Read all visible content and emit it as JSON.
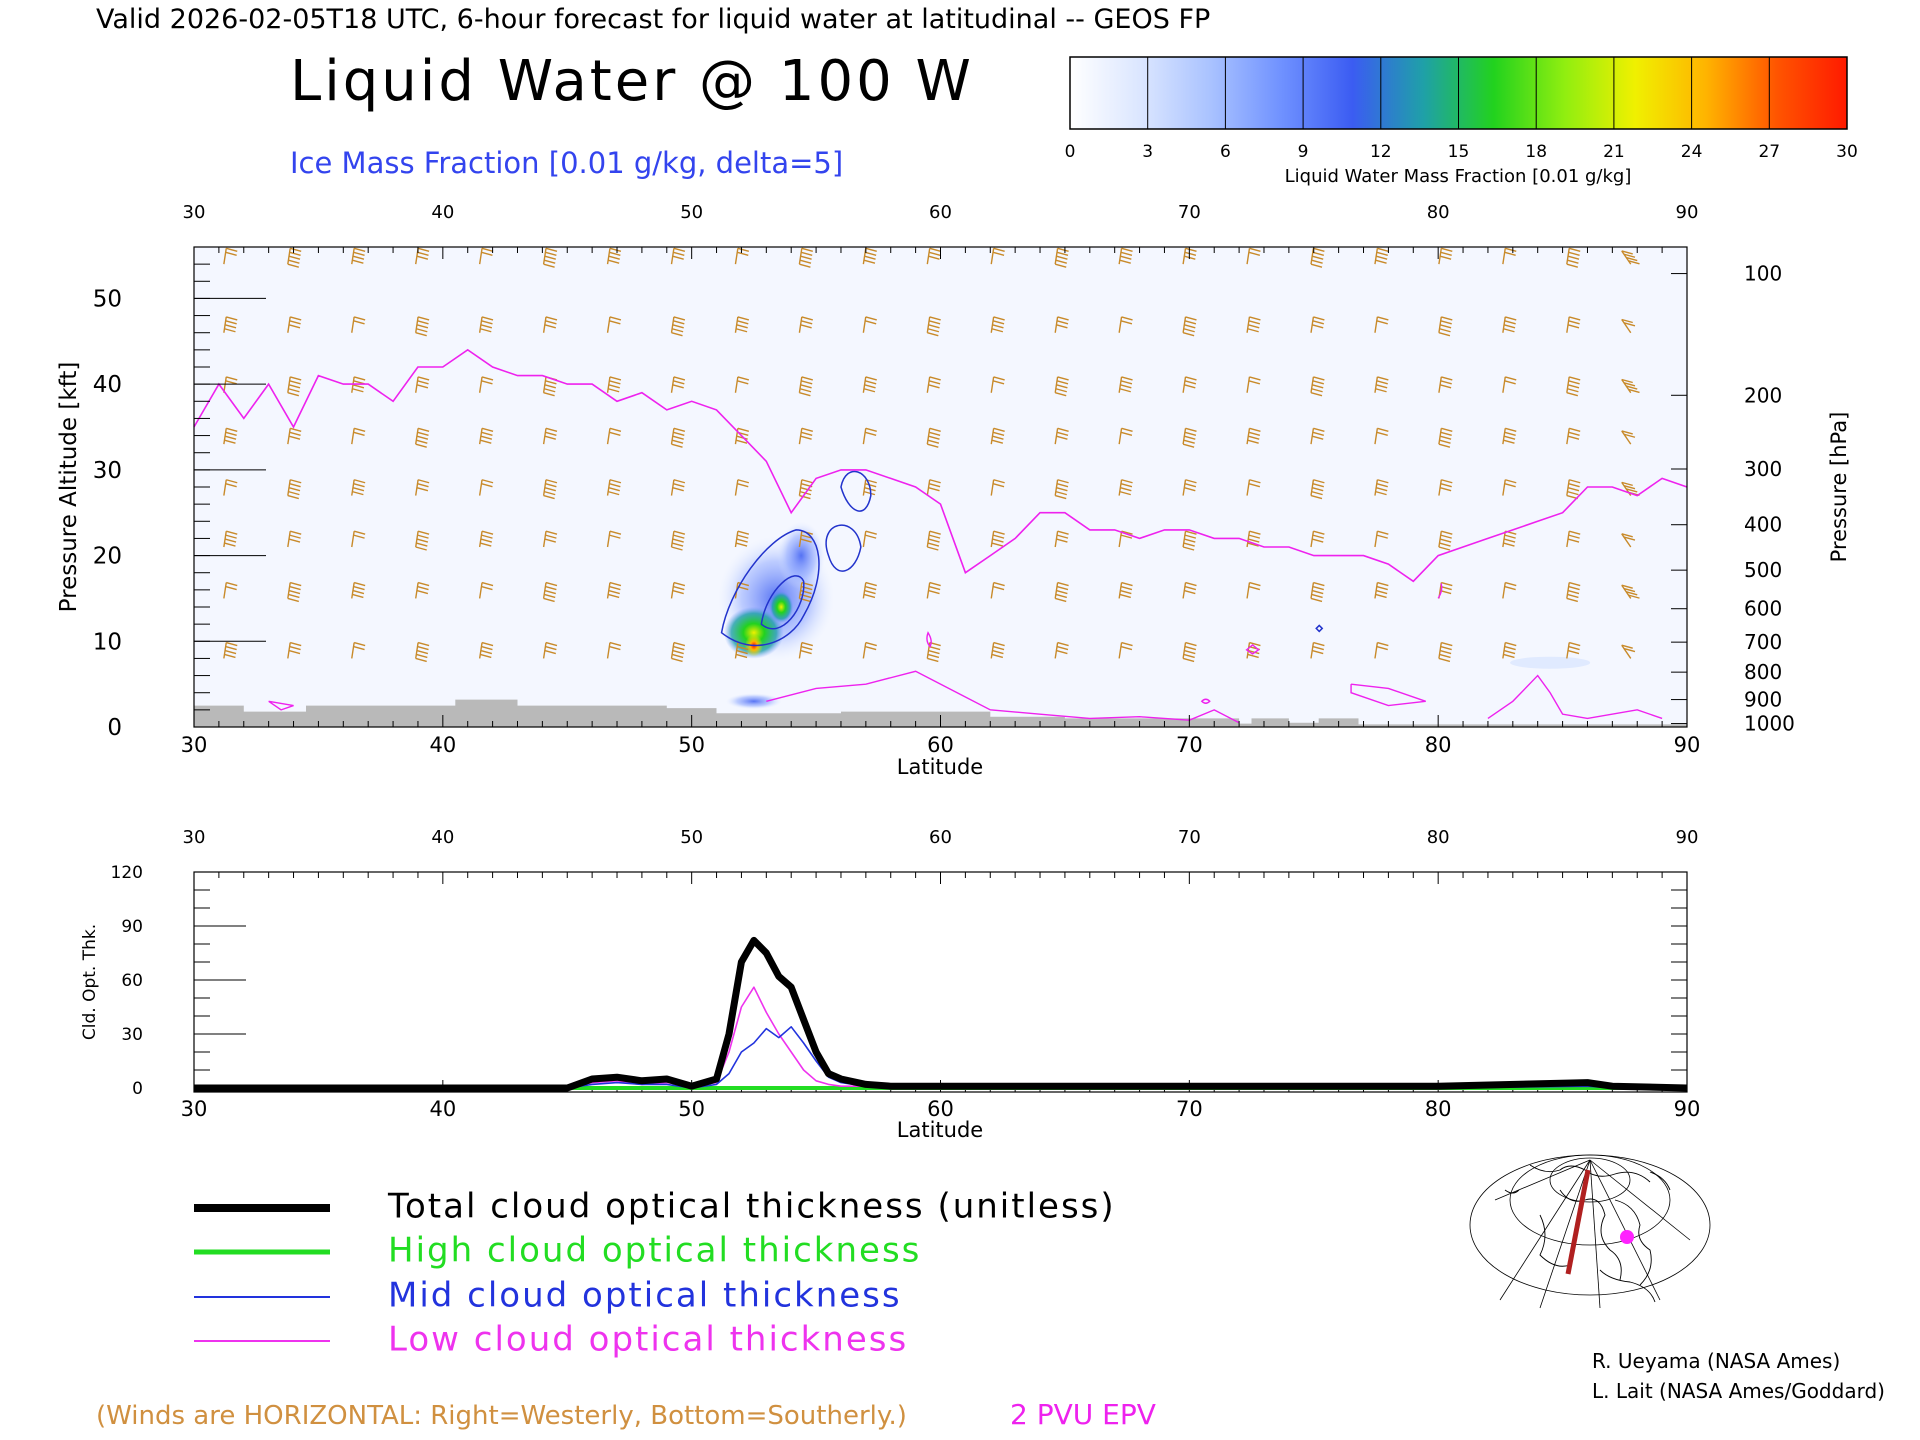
{
  "header": {
    "valid_line": "Valid 2026-02-05T18 UTC, 6-hour forecast for liquid water at latitudinal -- GEOS FP",
    "title": "Liquid Water @ 100 W",
    "ice_subtitle": "Ice Mass Fraction [0.01 g/kg, delta=5]"
  },
  "colorbar": {
    "label": "Liquid Water Mass Fraction [0.01 g/kg]",
    "ticks": [
      "0",
      "3",
      "6",
      "9",
      "12",
      "15",
      "18",
      "21",
      "24",
      "27",
      "30"
    ],
    "colors": [
      "#ffffff",
      "#dbe6ff",
      "#a9c2ff",
      "#6f91ff",
      "#3b5cf2",
      "#1fa0a8",
      "#22d21e",
      "#90ee10",
      "#f0f000",
      "#ffb400",
      "#ff5500",
      "#ff1a00"
    ]
  },
  "top_panel": {
    "top_axis_ticks": [
      "30",
      "40",
      "50",
      "60",
      "70",
      "80",
      "90"
    ],
    "bottom_axis_ticks": [
      "30",
      "40",
      "50",
      "60",
      "70",
      "80",
      "90"
    ],
    "xlabel": "Latitude",
    "ylabel": "Pressure Altitude [kft]",
    "left_ticks": [
      "0",
      "10",
      "20",
      "30",
      "40",
      "50"
    ],
    "right_label": "Pressure [hPa]",
    "right_ticks": [
      "100",
      "200",
      "300",
      "400",
      "500",
      "600",
      "700",
      "800",
      "900",
      "1000"
    ]
  },
  "bottom_panel": {
    "top_axis_ticks": [
      "30",
      "40",
      "50",
      "60",
      "70",
      "80",
      "90"
    ],
    "bottom_axis_ticks": [
      "30",
      "40",
      "50",
      "60",
      "70",
      "80",
      "90"
    ],
    "xlabel": "Latitude",
    "ylabel": "Cld. Opt. Thk.",
    "left_ticks": [
      "0",
      "30",
      "60",
      "90",
      "120"
    ]
  },
  "legend": [
    {
      "label": "Total cloud optical thickness (unitless)",
      "color": "#000000"
    },
    {
      "label": "High cloud optical thickness",
      "color": "#22dd22"
    },
    {
      "label": "Mid cloud optical thickness",
      "color": "#2233dd"
    },
    {
      "label": "Low cloud optical thickness",
      "color": "#ee33ee"
    }
  ],
  "footer": {
    "winds_note": "(Winds are HORIZONTAL: Right=Westerly, Bottom=Southerly.)",
    "pvu_label": "2 PVU EPV",
    "credit_1": "R. Ueyama (NASA Ames)",
    "credit_2": "L. Lait (NASA Ames/Goddard)"
  },
  "chart_data": [
    {
      "type": "heatmap",
      "title": "Liquid Water @ 100 W",
      "xlabel": "Latitude",
      "ylabel": "Pressure Altitude [kft]",
      "xlim": [
        30,
        90
      ],
      "ylim": [
        0,
        56
      ],
      "colorbar_range": [
        0,
        30
      ],
      "liquid_water_blobs": [
        {
          "lat": 52.6,
          "alt_kft": 10,
          "peak": 24
        },
        {
          "lat": 53.5,
          "alt_kft": 13,
          "peak": 15
        },
        {
          "lat": 52.2,
          "alt_kft": 12,
          "peak": 10
        },
        {
          "lat": 54.5,
          "alt_kft": 20,
          "peak": 6
        }
      ],
      "epv_2pvu_line": {
        "lat": [
          30,
          31,
          32,
          33,
          34,
          35,
          36,
          37,
          38,
          39,
          40,
          41,
          42,
          43,
          44,
          45,
          46,
          47,
          48,
          49,
          50,
          51,
          52,
          53,
          54,
          55,
          56,
          57,
          58,
          59,
          60,
          61,
          62,
          63,
          64,
          65,
          66,
          67,
          68,
          69,
          70,
          71,
          72,
          73,
          74,
          75,
          76,
          77,
          78,
          79,
          80,
          81,
          82,
          83,
          84,
          85,
          86,
          87,
          88,
          89,
          90
        ],
        "alt_kft": [
          35,
          40,
          36,
          40,
          35,
          41,
          40,
          40,
          38,
          42,
          42,
          44,
          42,
          41,
          41,
          40,
          40,
          38,
          39,
          37,
          38,
          37,
          34,
          31,
          25,
          29,
          30,
          30,
          29,
          28,
          26,
          18,
          20,
          22,
          25,
          25,
          23,
          23,
          22,
          23,
          23,
          22,
          22,
          21,
          21,
          20,
          20,
          20,
          19,
          17,
          20,
          21,
          22,
          23,
          24,
          25,
          28,
          28,
          27,
          29,
          28
        ]
      },
      "ice_mass_contours_levels": [
        5
      ],
      "wind_barbs": "drawn at every 2.5 deg latitude and ~6 kft",
      "terrain": "grey surface near 0-2 kft"
    },
    {
      "type": "line",
      "xlabel": "Latitude",
      "ylabel": "Cld. Opt. Thk.",
      "xlim": [
        30,
        90
      ],
      "ylim": [
        0,
        120
      ],
      "x": [
        30,
        40,
        45,
        46,
        47,
        48,
        49,
        50,
        51,
        51.5,
        52,
        52.5,
        53,
        53.5,
        54,
        54.5,
        55,
        55.5,
        56,
        57,
        58,
        60,
        70,
        80,
        86,
        87,
        90
      ],
      "series": [
        {
          "name": "Total cloud optical thickness (unitless)",
          "values": [
            0,
            0,
            0,
            5,
            6,
            4,
            5,
            1,
            5,
            30,
            70,
            82,
            75,
            62,
            56,
            38,
            20,
            8,
            5,
            2,
            1,
            1,
            1,
            1,
            3,
            1,
            0
          ]
        },
        {
          "name": "High cloud optical thickness",
          "values": [
            0,
            0,
            0,
            0,
            0,
            0,
            0,
            0,
            0,
            0,
            0,
            0,
            0,
            0,
            0,
            0,
            0,
            0,
            0,
            0,
            0,
            0,
            0,
            0,
            0,
            0,
            0
          ]
        },
        {
          "name": "Mid cloud optical thickness",
          "values": [
            0,
            0,
            0,
            2,
            3,
            2,
            2,
            0,
            2,
            8,
            20,
            25,
            33,
            28,
            34,
            25,
            15,
            6,
            3,
            1,
            0,
            0,
            0,
            0,
            1,
            0,
            0
          ]
        },
        {
          "name": "Low cloud optical thickness",
          "values": [
            0,
            0,
            0,
            3,
            4,
            2,
            3,
            1,
            3,
            20,
            45,
            56,
            42,
            30,
            20,
            10,
            4,
            2,
            1,
            1,
            1,
            1,
            1,
            1,
            2,
            1,
            0
          ]
        }
      ]
    }
  ]
}
